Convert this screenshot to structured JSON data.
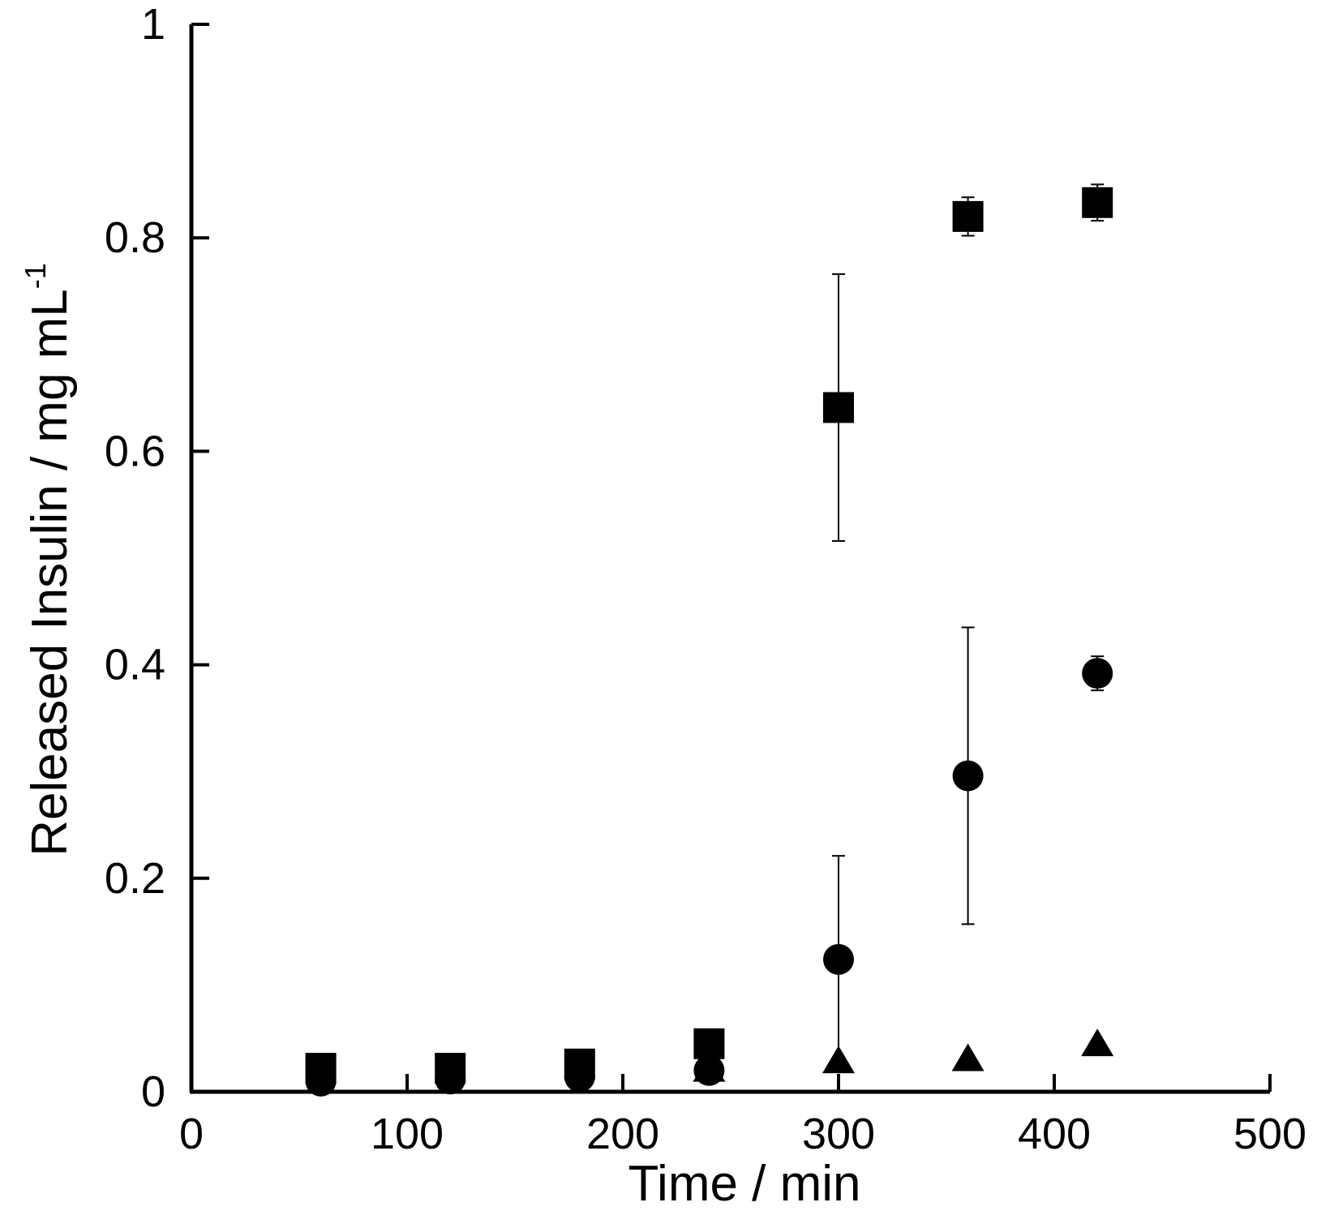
{
  "chart_data": {
    "type": "scatter",
    "title": "",
    "xlabel": "Time / min",
    "ylabel": "Released Insulin / mg mL",
    "ylabel_superscript": "-1",
    "xlim": [
      0,
      500
    ],
    "ylim": [
      0,
      1
    ],
    "x_ticks": [
      0,
      100,
      200,
      300,
      400,
      500
    ],
    "x_tick_labels": [
      "0",
      "100",
      "200",
      "300",
      "400",
      "500"
    ],
    "y_ticks": [
      0,
      0.2,
      0.4,
      0.6,
      0.8,
      1
    ],
    "y_tick_labels": [
      "0",
      "0.2",
      "0.4",
      "0.6",
      "0.8",
      "1"
    ],
    "grid": false,
    "legend": "none",
    "marker_color": "#000000",
    "series": [
      {
        "marker": "square",
        "x": [
          60,
          120,
          180,
          240,
          300,
          360,
          420
        ],
        "y": [
          0.022,
          0.022,
          0.026,
          0.045,
          0.641,
          0.82,
          0.833
        ],
        "err": [
          0,
          0,
          0,
          0,
          0.125,
          0.018,
          0.017
        ]
      },
      {
        "marker": "circle",
        "x": [
          60,
          120,
          180,
          240,
          300,
          360,
          420
        ],
        "y": [
          0.01,
          0.012,
          0.014,
          0.02,
          0.124,
          0.296,
          0.392
        ],
        "err": [
          0,
          0,
          0,
          0,
          0.097,
          0.139,
          0.016
        ]
      },
      {
        "marker": "triangle",
        "x": [
          240,
          300,
          360,
          420
        ],
        "y": [
          0.02,
          0.028,
          0.03,
          0.044
        ],
        "err": [
          0,
          0,
          0,
          0.004
        ]
      }
    ]
  }
}
